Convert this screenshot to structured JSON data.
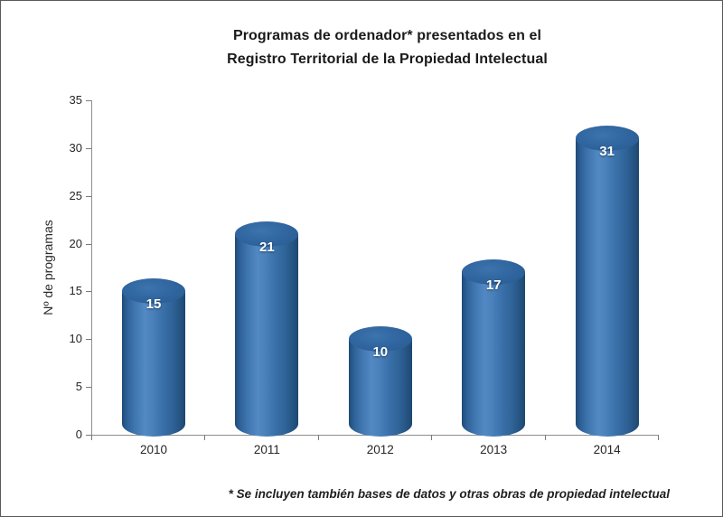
{
  "window": {
    "background_color": "#ffffff",
    "border_color": "#595959"
  },
  "chart_data": {
    "type": "bar",
    "subtype": "cylinder-3d",
    "title_lines": [
      "Programas de ordenador* presentados en el",
      "Registro Territorial de la Propiedad Intelectual"
    ],
    "categories": [
      "2010",
      "2011",
      "2012",
      "2013",
      "2014"
    ],
    "values": [
      15,
      21,
      10,
      17,
      31
    ],
    "data_labels": [
      15,
      21,
      10,
      17,
      31
    ],
    "xlabel": "",
    "ylabel": "Nº de programas",
    "ylim": [
      0,
      35
    ],
    "ytick_step": 5,
    "yticks": [
      0,
      5,
      10,
      15,
      20,
      25,
      30,
      35
    ],
    "grid": false,
    "legend": false,
    "data_label_color": "#ffffff",
    "bar_color": "#3a70a9",
    "bar_color_light": "#5289c4",
    "bar_color_dark": "#1f4a75",
    "axis_color": "#8e8e8e",
    "footnote": "* Se incluyen también bases de datos y otras obras de propiedad intelectual"
  }
}
